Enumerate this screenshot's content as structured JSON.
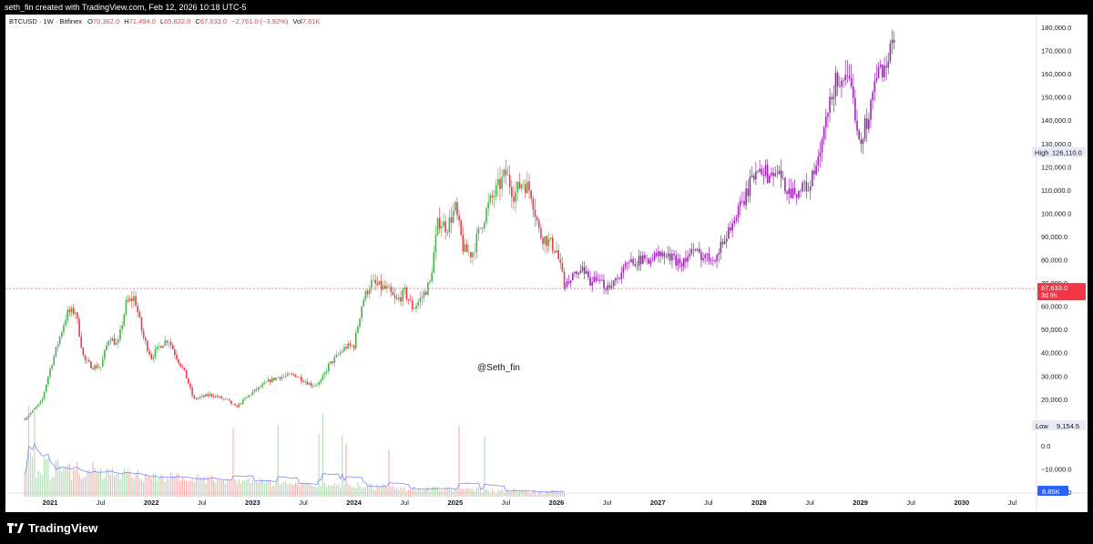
{
  "header": {
    "created_text": "seth_fin created with TradingView.com, Feb 12, 2026 10:18 UTC-5"
  },
  "legend": {
    "symbol": "BTCUSD · 1W · Bitfinex",
    "open_label": "O",
    "open": "70,362.0",
    "high_label": "H",
    "high": "71,494.0",
    "low_label": "L",
    "low": "65,822.0",
    "close_label": "C",
    "close": "67,633.0",
    "change": "−2,761.0 (−3.92%)",
    "vol_label": "Vol",
    "vol": "7.61K"
  },
  "watermark": "@Seth_fin",
  "footer": {
    "brand": "TradingView"
  },
  "colors": {
    "up": "#4caf50",
    "down": "#f23645",
    "projection": "#9c27b0",
    "price_line": "#f23645",
    "volume_ma": "#7e8cf6",
    "volume_badge": "#2962ff"
  },
  "chart_data": {
    "type": "candlestick",
    "price_scale_labels": [
      "180,000.0",
      "170,000.0",
      "160,000.0",
      "150,000.0",
      "140,000.0",
      "130,000.0",
      "120,000.0",
      "110,000.0",
      "100,000.0",
      "90,000.0",
      "80,000.0",
      "70,000.0",
      "60,000.0",
      "50,000.0",
      "40,000.0",
      "30,000.0",
      "20,000.0",
      "10,000.0",
      "0.0",
      "−10,000.0",
      "−20,000.0"
    ],
    "price_scale_values": [
      180000,
      170000,
      160000,
      150000,
      140000,
      130000,
      120000,
      110000,
      100000,
      90000,
      80000,
      70000,
      60000,
      50000,
      40000,
      30000,
      20000,
      10000,
      0,
      -10000,
      -20000
    ],
    "ylim": [
      -20000,
      180000
    ],
    "time_axis_labels": [
      "2021",
      "Jul",
      "2022",
      "Jul",
      "2023",
      "Jul",
      "2024",
      "Jul",
      "2025",
      "Jul",
      "2026",
      "Jul",
      "2027",
      "Jul",
      "2028",
      "Jul",
      "2029",
      "Jul",
      "2030",
      "Jul"
    ],
    "time_axis_dates": [
      "2021-01",
      "2021-07",
      "2022-01",
      "2022-07",
      "2023-01",
      "2023-07",
      "2024-01",
      "2024-07",
      "2025-01",
      "2025-07",
      "2026-01",
      "2026-07",
      "2027-01",
      "2027-07",
      "2028-01",
      "2028-07",
      "2029-01",
      "2029-07",
      "2030-01",
      "2030-07"
    ],
    "current_price": {
      "value": 67633,
      "label": "67,633.0",
      "countdown": "3d 9h"
    },
    "high_marker": {
      "label": "High",
      "value_text": "126,110.0",
      "value": 126110
    },
    "low_marker": {
      "label": "Low",
      "value_text": "9,154.5",
      "value": 9154.5
    },
    "volume_badge": "8.85K",
    "historical_anchors": [
      [
        "2020-10",
        11500
      ],
      [
        "2020-12",
        19000
      ],
      [
        "2021-01",
        33000
      ],
      [
        "2021-02",
        45000
      ],
      [
        "2021-03",
        57000
      ],
      [
        "2021-04",
        58000
      ],
      [
        "2021-05",
        37000
      ],
      [
        "2021-06",
        34000
      ],
      [
        "2021-07",
        34000
      ],
      [
        "2021-08",
        47000
      ],
      [
        "2021-09",
        43000
      ],
      [
        "2021-10",
        61000
      ],
      [
        "2021-11",
        64000
      ],
      [
        "2021-12",
        47000
      ],
      [
        "2022-01",
        38000
      ],
      [
        "2022-02",
        43000
      ],
      [
        "2022-03",
        46000
      ],
      [
        "2022-04",
        38000
      ],
      [
        "2022-05",
        31000
      ],
      [
        "2022-06",
        20000
      ],
      [
        "2022-08",
        22000
      ],
      [
        "2022-10",
        19500
      ],
      [
        "2022-11",
        16500
      ],
      [
        "2023-01",
        23000
      ],
      [
        "2023-03",
        28000
      ],
      [
        "2023-04",
        29500
      ],
      [
        "2023-06",
        30500
      ],
      [
        "2023-08",
        26000
      ],
      [
        "2023-09",
        27000
      ],
      [
        "2023-10",
        34500
      ],
      [
        "2023-12",
        42500
      ],
      [
        "2024-01",
        43000
      ],
      [
        "2024-02",
        62000
      ],
      [
        "2024-03",
        70000
      ],
      [
        "2024-05",
        67000
      ],
      [
        "2024-06",
        62000
      ],
      [
        "2024-07",
        66000
      ],
      [
        "2024-08",
        59000
      ],
      [
        "2024-09",
        63500
      ],
      [
        "2024-10",
        70000
      ],
      [
        "2024-11",
        97000
      ],
      [
        "2024-12",
        94000
      ],
      [
        "2025-01",
        102000
      ],
      [
        "2025-02",
        84000
      ],
      [
        "2025-03",
        82500
      ],
      [
        "2025-04",
        94000
      ],
      [
        "2025-05",
        104000
      ],
      [
        "2025-07",
        117000
      ],
      [
        "2025-08",
        108000
      ],
      [
        "2025-09",
        114000
      ],
      [
        "2025-10",
        109000
      ],
      [
        "2025-11",
        91000
      ],
      [
        "2025-12",
        88000
      ],
      [
        "2026-01",
        84000
      ],
      [
        "2026-02",
        67633
      ]
    ],
    "projection_anchors": [
      [
        "2026-02",
        67633
      ],
      [
        "2026-03",
        73000
      ],
      [
        "2026-04",
        75000
      ],
      [
        "2026-05",
        71000
      ],
      [
        "2026-06",
        70000
      ],
      [
        "2026-07",
        68500
      ],
      [
        "2026-08",
        71500
      ],
      [
        "2026-09",
        76000
      ],
      [
        "2026-10",
        80000
      ],
      [
        "2026-11",
        79500
      ],
      [
        "2027-01",
        82000
      ],
      [
        "2027-02",
        81500
      ],
      [
        "2027-03",
        80000
      ],
      [
        "2027-04",
        79000
      ],
      [
        "2027-05",
        83500
      ],
      [
        "2027-07",
        81000
      ],
      [
        "2027-08",
        82000
      ],
      [
        "2027-09",
        90000
      ],
      [
        "2027-10",
        97000
      ],
      [
        "2027-11",
        104000
      ],
      [
        "2028-01",
        122000
      ],
      [
        "2028-02",
        116000
      ],
      [
        "2028-03",
        118000
      ],
      [
        "2028-04",
        112000
      ],
      [
        "2028-05",
        109000
      ],
      [
        "2028-07",
        112000
      ],
      [
        "2028-08",
        122000
      ],
      [
        "2028-09",
        140000
      ],
      [
        "2028-10",
        156000
      ],
      [
        "2028-11",
        159000
      ],
      [
        "2028-12",
        151000
      ],
      [
        "2029-01",
        131000
      ],
      [
        "2029-02",
        143000
      ],
      [
        "2029-03",
        160000
      ],
      [
        "2029-04",
        164000
      ],
      [
        "2029-05",
        173000
      ]
    ]
  }
}
